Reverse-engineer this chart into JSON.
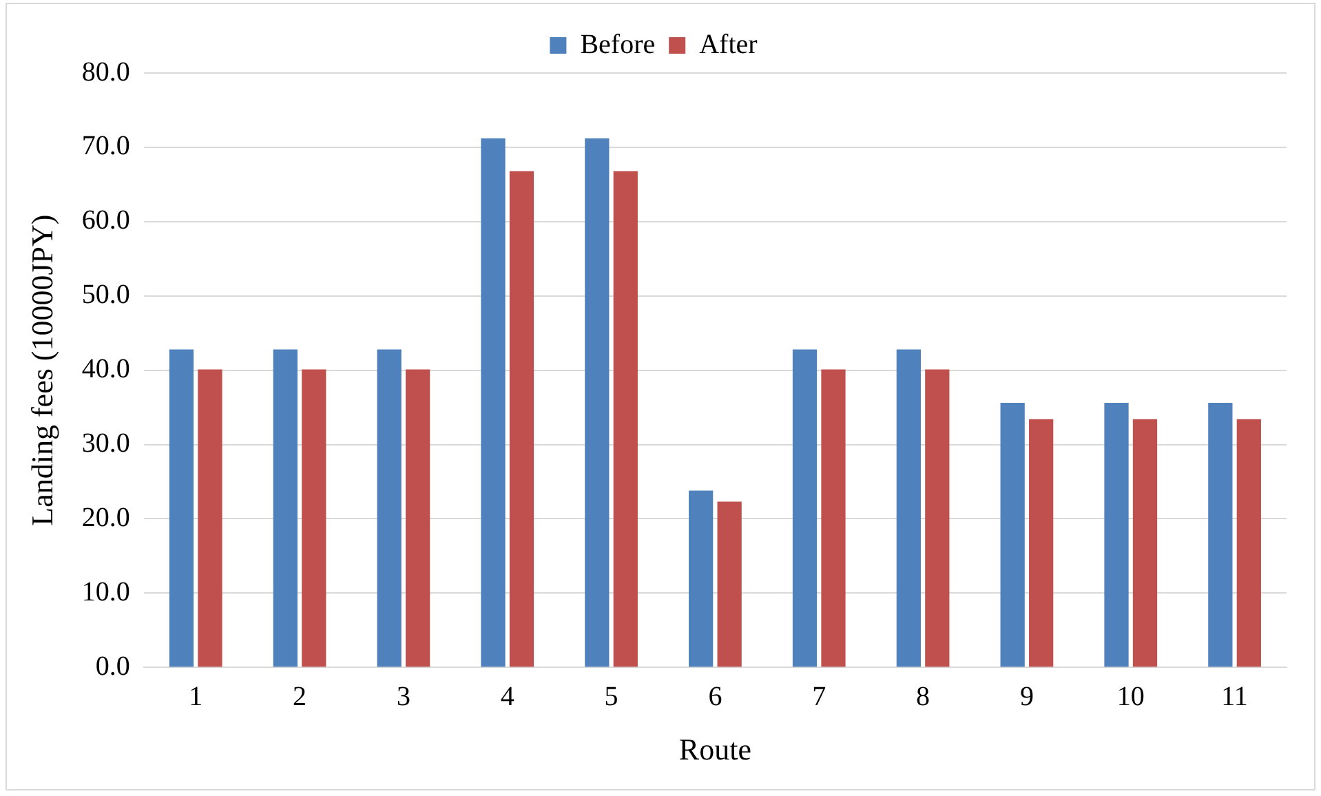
{
  "chart_data": {
    "type": "bar",
    "xlabel": "Route",
    "ylabel": "Landing fees (10000JPY)",
    "categories": [
      "1",
      "2",
      "3",
      "4",
      "5",
      "6",
      "7",
      "8",
      "9",
      "10",
      "11"
    ],
    "series": [
      {
        "name": "Before",
        "color": "#4f81bd",
        "values": [
          42.8,
          42.8,
          42.8,
          71.2,
          71.2,
          23.8,
          42.8,
          42.8,
          35.6,
          35.6,
          35.6
        ]
      },
      {
        "name": "After",
        "color": "#c0504d",
        "values": [
          40.1,
          40.1,
          40.1,
          66.8,
          66.8,
          22.3,
          40.1,
          40.1,
          33.4,
          33.4,
          33.4
        ]
      }
    ],
    "ylim": [
      0,
      80
    ],
    "yticks": [
      {
        "value": 0,
        "label": "0.0"
      },
      {
        "value": 10,
        "label": "10.0"
      },
      {
        "value": 20,
        "label": "20.0"
      },
      {
        "value": 30,
        "label": "30.0"
      },
      {
        "value": 40,
        "label": "40.0"
      },
      {
        "value": 50,
        "label": "50.0"
      },
      {
        "value": 60,
        "label": "60.0"
      },
      {
        "value": 70,
        "label": "70.0"
      },
      {
        "value": 80,
        "label": "80.0"
      }
    ],
    "grid": "y",
    "legend": "top"
  }
}
